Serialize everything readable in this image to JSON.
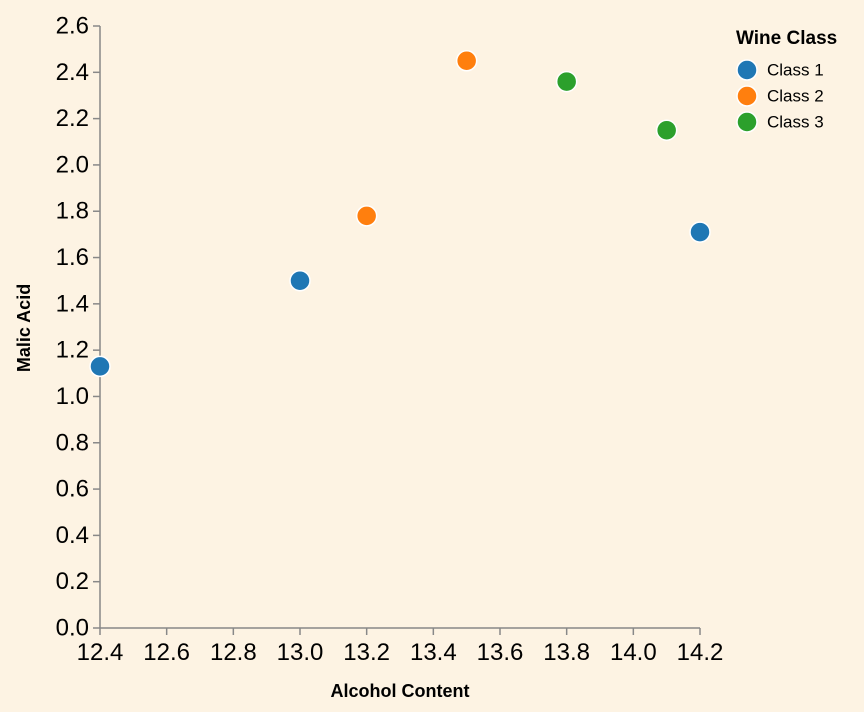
{
  "chart_data": {
    "type": "scatter",
    "xlabel": "Alcohol Content",
    "ylabel": "Malic Acid",
    "xlim": [
      12.4,
      14.2
    ],
    "ylim": [
      0.0,
      2.6
    ],
    "x_ticks": [
      "12.4",
      "12.6",
      "12.8",
      "13.0",
      "13.2",
      "13.4",
      "13.6",
      "13.8",
      "14.0",
      "14.2"
    ],
    "y_ticks": [
      "0.0",
      "0.2",
      "0.4",
      "0.6",
      "0.8",
      "1.0",
      "1.2",
      "1.4",
      "1.6",
      "1.8",
      "2.0",
      "2.2",
      "2.4",
      "2.6"
    ],
    "grid": false,
    "legend": {
      "title": "Wine Class",
      "position": "top-right"
    },
    "series": [
      {
        "name": "Class 1",
        "color": "#1f77b4",
        "points": [
          {
            "x": 12.4,
            "y": 1.13
          },
          {
            "x": 13.0,
            "y": 1.5
          },
          {
            "x": 14.2,
            "y": 1.71
          }
        ]
      },
      {
        "name": "Class 2",
        "color": "#ff7f0e",
        "points": [
          {
            "x": 13.2,
            "y": 1.78
          },
          {
            "x": 13.5,
            "y": 2.45
          }
        ]
      },
      {
        "name": "Class 3",
        "color": "#2ca02c",
        "points": [
          {
            "x": 13.8,
            "y": 2.36
          },
          {
            "x": 14.1,
            "y": 2.15
          }
        ]
      }
    ]
  }
}
